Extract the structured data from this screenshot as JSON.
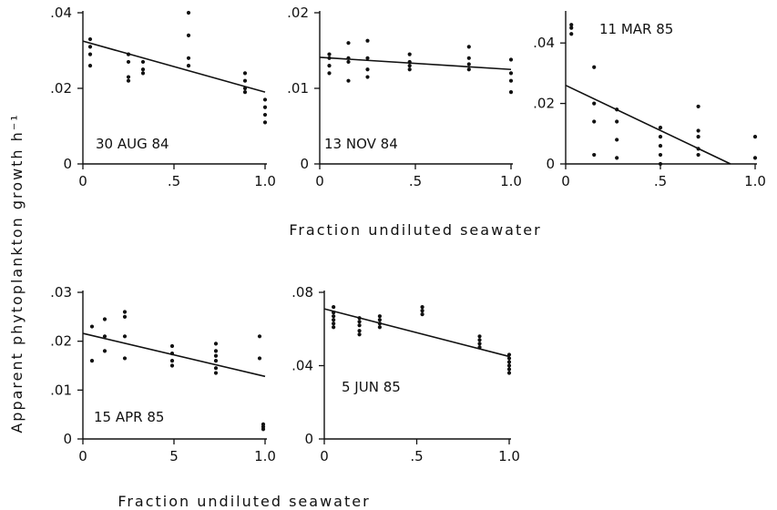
{
  "figure": {
    "ylabel": "Apparent phytoplankton growth h⁻¹",
    "xlabel": "Fraction undiluted seawater"
  },
  "chart_data": [
    {
      "type": "scatter",
      "label": "30 AUG 84",
      "xlim": [
        0,
        1.0
      ],
      "ylim": [
        0,
        0.04
      ],
      "xticks": [
        {
          "v": 0,
          "t": "0"
        },
        {
          "v": 0.5,
          "t": ".5"
        },
        {
          "v": 1.0,
          "t": "1.0"
        }
      ],
      "yticks": [
        {
          "v": 0,
          "t": "0"
        },
        {
          "v": 0.02,
          "t": ".02"
        },
        {
          "v": 0.04,
          "t": ".04"
        }
      ],
      "points": [
        [
          0.04,
          0.033
        ],
        [
          0.04,
          0.031
        ],
        [
          0.04,
          0.029
        ],
        [
          0.04,
          0.026
        ],
        [
          0.25,
          0.029
        ],
        [
          0.25,
          0.027
        ],
        [
          0.25,
          0.023
        ],
        [
          0.25,
          0.022
        ],
        [
          0.33,
          0.027
        ],
        [
          0.33,
          0.025
        ],
        [
          0.33,
          0.024
        ],
        [
          0.58,
          0.04
        ],
        [
          0.58,
          0.034
        ],
        [
          0.58,
          0.028
        ],
        [
          0.58,
          0.026
        ],
        [
          0.89,
          0.024
        ],
        [
          0.89,
          0.022
        ],
        [
          0.89,
          0.02
        ],
        [
          0.89,
          0.019
        ],
        [
          1.0,
          0.017
        ],
        [
          1.0,
          0.015
        ],
        [
          1.0,
          0.013
        ],
        [
          1.0,
          0.011
        ]
      ],
      "fit": [
        [
          0.0,
          0.0325
        ],
        [
          1.0,
          0.019
        ]
      ]
    },
    {
      "type": "scatter",
      "label": "13 NOV 84",
      "xlim": [
        0,
        1.0
      ],
      "ylim": [
        0,
        0.02
      ],
      "xticks": [
        {
          "v": 0,
          "t": "0"
        },
        {
          "v": 0.5,
          "t": ".5"
        },
        {
          "v": 1.0,
          "t": "1.0"
        }
      ],
      "yticks": [
        {
          "v": 0,
          "t": "0"
        },
        {
          "v": 0.01,
          "t": ".01"
        },
        {
          "v": 0.02,
          "t": ".02"
        }
      ],
      "points": [
        [
          0.05,
          0.0145
        ],
        [
          0.05,
          0.014
        ],
        [
          0.05,
          0.013
        ],
        [
          0.05,
          0.012
        ],
        [
          0.15,
          0.016
        ],
        [
          0.15,
          0.014
        ],
        [
          0.15,
          0.0135
        ],
        [
          0.15,
          0.011
        ],
        [
          0.25,
          0.0163
        ],
        [
          0.25,
          0.014
        ],
        [
          0.25,
          0.0125
        ],
        [
          0.25,
          0.0115
        ],
        [
          0.47,
          0.0145
        ],
        [
          0.47,
          0.0135
        ],
        [
          0.47,
          0.013
        ],
        [
          0.47,
          0.0125
        ],
        [
          0.78,
          0.0155
        ],
        [
          0.78,
          0.014
        ],
        [
          0.78,
          0.0132
        ],
        [
          0.78,
          0.0125
        ],
        [
          1.0,
          0.0138
        ],
        [
          1.0,
          0.012
        ],
        [
          1.0,
          0.011
        ],
        [
          1.0,
          0.0095
        ]
      ],
      "fit": [
        [
          0.0,
          0.0141
        ],
        [
          1.0,
          0.0125
        ]
      ]
    },
    {
      "type": "scatter",
      "label": "11 MAR 85",
      "xlim": [
        0,
        1.0
      ],
      "ylim": [
        0,
        0.05
      ],
      "xticks": [
        {
          "v": 0,
          "t": "0"
        },
        {
          "v": 0.5,
          "t": ".5"
        },
        {
          "v": 1.0,
          "t": "1.0"
        }
      ],
      "yticks": [
        {
          "v": 0,
          "t": "0"
        },
        {
          "v": 0.02,
          "t": ".02"
        },
        {
          "v": 0.04,
          "t": ".04"
        }
      ],
      "points": [
        [
          0.03,
          0.046
        ],
        [
          0.03,
          0.045
        ],
        [
          0.03,
          0.043
        ],
        [
          0.15,
          0.032
        ],
        [
          0.15,
          0.02
        ],
        [
          0.15,
          0.014
        ],
        [
          0.15,
          0.003
        ],
        [
          0.27,
          0.018
        ],
        [
          0.27,
          0.014
        ],
        [
          0.27,
          0.008
        ],
        [
          0.27,
          0.002
        ],
        [
          0.5,
          0.012
        ],
        [
          0.5,
          0.009
        ],
        [
          0.5,
          0.006
        ],
        [
          0.5,
          0.003
        ],
        [
          0.5,
          0.0
        ],
        [
          0.7,
          0.019
        ],
        [
          0.7,
          0.011
        ],
        [
          0.7,
          0.009
        ],
        [
          0.7,
          0.005
        ],
        [
          0.7,
          0.003
        ],
        [
          1.0,
          0.009
        ],
        [
          1.0,
          0.002
        ]
      ],
      "fit": [
        [
          0.0,
          0.026
        ],
        [
          0.87,
          0.0
        ]
      ]
    },
    {
      "type": "scatter",
      "label": "15 APR 85",
      "xlim": [
        0,
        1.0
      ],
      "ylim": [
        0,
        0.03
      ],
      "xticks": [
        {
          "v": 0,
          "t": "0"
        },
        {
          "v": 0.5,
          "t": "5"
        },
        {
          "v": 1.0,
          "t": "1.0"
        }
      ],
      "yticks": [
        {
          "v": 0,
          "t": "0"
        },
        {
          "v": 0.01,
          "t": ".01"
        },
        {
          "v": 0.02,
          "t": ".02"
        },
        {
          "v": 0.03,
          "t": ".03"
        }
      ],
      "points": [
        [
          0.05,
          0.023
        ],
        [
          0.05,
          0.016
        ],
        [
          0.12,
          0.0245
        ],
        [
          0.12,
          0.021
        ],
        [
          0.12,
          0.018
        ],
        [
          0.23,
          0.026
        ],
        [
          0.23,
          0.025
        ],
        [
          0.23,
          0.021
        ],
        [
          0.23,
          0.0165
        ],
        [
          0.49,
          0.019
        ],
        [
          0.49,
          0.0175
        ],
        [
          0.49,
          0.016
        ],
        [
          0.49,
          0.015
        ],
        [
          0.73,
          0.0195
        ],
        [
          0.73,
          0.018
        ],
        [
          0.73,
          0.017
        ],
        [
          0.73,
          0.016
        ],
        [
          0.73,
          0.0145
        ],
        [
          0.73,
          0.0135
        ],
        [
          0.97,
          0.021
        ],
        [
          0.97,
          0.0165
        ],
        [
          0.99,
          0.003
        ],
        [
          0.99,
          0.0025
        ],
        [
          0.99,
          0.002
        ]
      ],
      "fit": [
        [
          0.0,
          0.0216
        ],
        [
          1.0,
          0.0128
        ]
      ]
    },
    {
      "type": "scatter",
      "label": "5 JUN 85",
      "xlim": [
        0,
        1.0
      ],
      "ylim": [
        0,
        0.08
      ],
      "xticks": [
        {
          "v": 0,
          "t": "0"
        },
        {
          "v": 0.5,
          "t": ".5"
        },
        {
          "v": 1.0,
          "t": "1.0"
        }
      ],
      "yticks": [
        {
          "v": 0,
          "t": "0"
        },
        {
          "v": 0.04,
          "t": ".04"
        },
        {
          "v": 0.08,
          "t": ".08"
        }
      ],
      "points": [
        [
          0.05,
          0.072
        ],
        [
          0.05,
          0.069
        ],
        [
          0.05,
          0.067
        ],
        [
          0.05,
          0.065
        ],
        [
          0.05,
          0.063
        ],
        [
          0.05,
          0.061
        ],
        [
          0.19,
          0.066
        ],
        [
          0.19,
          0.064
        ],
        [
          0.19,
          0.062
        ],
        [
          0.19,
          0.059
        ],
        [
          0.19,
          0.057
        ],
        [
          0.3,
          0.067
        ],
        [
          0.3,
          0.065
        ],
        [
          0.3,
          0.063
        ],
        [
          0.3,
          0.061
        ],
        [
          0.53,
          0.072
        ],
        [
          0.53,
          0.07
        ],
        [
          0.53,
          0.068
        ],
        [
          0.84,
          0.056
        ],
        [
          0.84,
          0.054
        ],
        [
          0.84,
          0.052
        ],
        [
          0.84,
          0.05
        ],
        [
          1.0,
          0.046
        ],
        [
          1.0,
          0.044
        ],
        [
          1.0,
          0.042
        ],
        [
          1.0,
          0.04
        ],
        [
          1.0,
          0.038
        ],
        [
          1.0,
          0.036
        ]
      ],
      "fit": [
        [
          0.0,
          0.071
        ],
        [
          1.0,
          0.045
        ]
      ]
    }
  ]
}
